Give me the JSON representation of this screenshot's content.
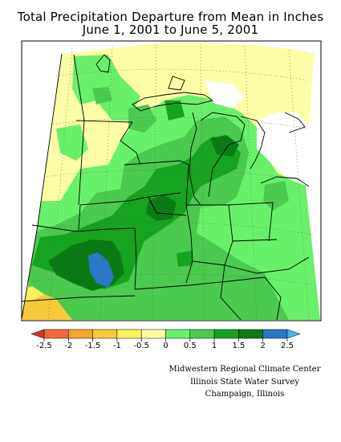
{
  "title": {
    "line1": "Total Precipitation Departure from Mean in Inches",
    "line2": "June 1, 2001 to June 5, 2001"
  },
  "legend": {
    "labels": [
      "-2.5",
      "-2",
      "-1.5",
      "-1",
      "-0.5",
      "0",
      "0.5",
      "1",
      "1.5",
      "2",
      "2.5"
    ],
    "colors": [
      "#d8342a",
      "#ef6a3b",
      "#f5a32c",
      "#f8c93b",
      "#fbf15a",
      "#fdfda8",
      "#69f06a",
      "#4cc94f",
      "#16a31f",
      "#0b7a14",
      "#2b77c8",
      "#44b6e8"
    ]
  },
  "credits": {
    "line1": "Midwestern Regional Climate Center",
    "line2": "Illinois State Water Survey",
    "line3": "Champaign, Illinois"
  }
}
